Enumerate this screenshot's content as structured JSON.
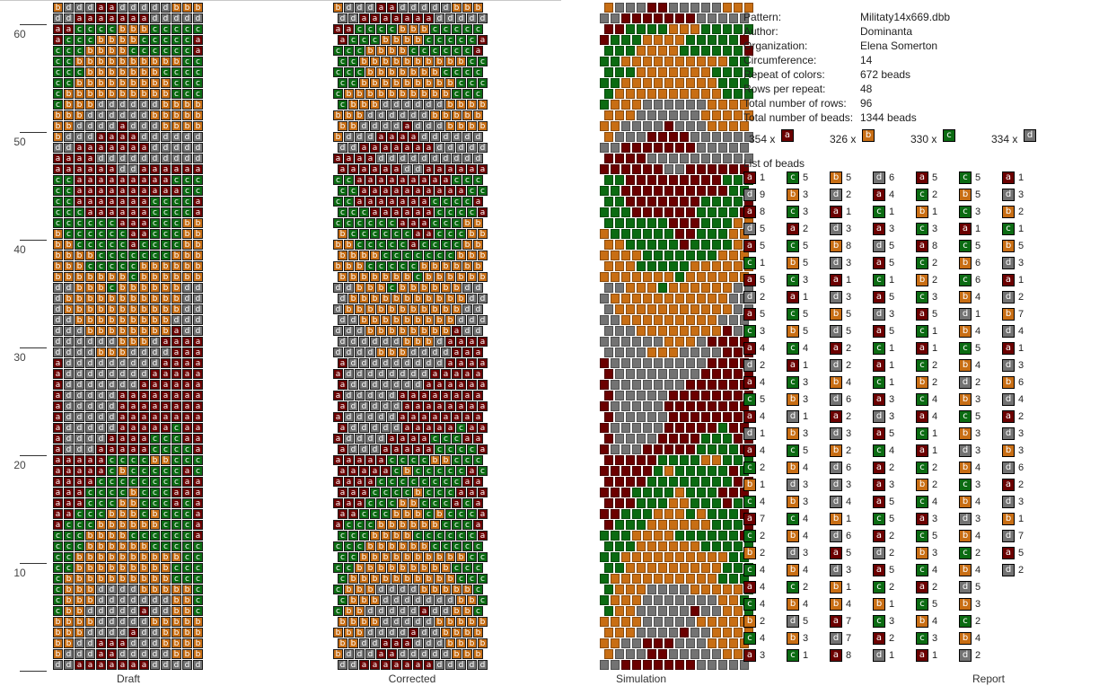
{
  "ruler": {
    "labels": [
      "10",
      "20",
      "30",
      "40",
      "50",
      "60"
    ]
  },
  "panels": {
    "draft_label": "Draft",
    "corrected_label": "Corrected",
    "simulation_label": "Simulation",
    "report_label": "Report"
  },
  "colors": {
    "a": "#6b0000",
    "b": "#c86e14",
    "c": "#0b6b12",
    "d": "#737373",
    "border": "#000000"
  },
  "report": {
    "fields": [
      {
        "label": "Pattern:",
        "value": "Militaty14x669.dbb"
      },
      {
        "label": "Author:",
        "value": "Dominanta"
      },
      {
        "label": "Organization:",
        "value": "Elena Somerton"
      },
      {
        "label": "Circumference:",
        "value": "14"
      },
      {
        "label": "Repeat of colors:",
        "value": "672 beads"
      },
      {
        "label": "Rows per repeat:",
        "value": "48"
      },
      {
        "label": "Total number of rows:",
        "value": "96"
      },
      {
        "label": "Total number of beads:",
        "value": "1344 beads"
      }
    ],
    "tally": [
      {
        "text": "354 x",
        "letter": "a"
      },
      {
        "text": "326 x",
        "letter": "b"
      },
      {
        "text": "330 x",
        "letter": "c"
      },
      {
        "text": "334 x",
        "letter": "d"
      }
    ],
    "list_title": "List of beads",
    "bead_columns": [
      [
        [
          "a",
          "1"
        ],
        [
          "d",
          "9"
        ],
        [
          "a",
          "8"
        ],
        [
          "d",
          "5"
        ],
        [
          "a",
          "5"
        ],
        [
          "c",
          "1"
        ],
        [
          "a",
          "5"
        ],
        [
          "d",
          "2"
        ],
        [
          "a",
          "5"
        ],
        [
          "c",
          "3"
        ],
        [
          "a",
          "4"
        ],
        [
          "d",
          "2"
        ],
        [
          "a",
          "4"
        ],
        [
          "c",
          "5"
        ],
        [
          "a",
          "4"
        ],
        [
          "d",
          "1"
        ],
        [
          "a",
          "4"
        ],
        [
          "c",
          "2"
        ],
        [
          "b",
          "1"
        ],
        [
          "c",
          "4"
        ],
        [
          "a",
          "7"
        ],
        [
          "c",
          "2"
        ],
        [
          "b",
          "2"
        ],
        [
          "c",
          "4"
        ],
        [
          "a",
          "4"
        ],
        [
          "c",
          "4"
        ],
        [
          "b",
          "2"
        ],
        [
          "c",
          "4"
        ],
        [
          "a",
          "3"
        ]
      ],
      [
        [
          "c",
          "5"
        ],
        [
          "b",
          "3"
        ],
        [
          "c",
          "3"
        ],
        [
          "a",
          "2"
        ],
        [
          "c",
          "5"
        ],
        [
          "b",
          "5"
        ],
        [
          "c",
          "3"
        ],
        [
          "a",
          "1"
        ],
        [
          "c",
          "5"
        ],
        [
          "b",
          "5"
        ],
        [
          "c",
          "4"
        ],
        [
          "a",
          "1"
        ],
        [
          "c",
          "3"
        ],
        [
          "b",
          "3"
        ],
        [
          "d",
          "1"
        ],
        [
          "b",
          "3"
        ],
        [
          "c",
          "5"
        ],
        [
          "b",
          "4"
        ],
        [
          "d",
          "3"
        ],
        [
          "b",
          "3"
        ],
        [
          "c",
          "4"
        ],
        [
          "b",
          "4"
        ],
        [
          "d",
          "3"
        ],
        [
          "b",
          "4"
        ],
        [
          "c",
          "2"
        ],
        [
          "b",
          "4"
        ],
        [
          "d",
          "5"
        ],
        [
          "b",
          "3"
        ],
        [
          "c",
          "1"
        ]
      ],
      [
        [
          "b",
          "5"
        ],
        [
          "d",
          "2"
        ],
        [
          "a",
          "1"
        ],
        [
          "d",
          "3"
        ],
        [
          "b",
          "8"
        ],
        [
          "d",
          "3"
        ],
        [
          "a",
          "1"
        ],
        [
          "d",
          "3"
        ],
        [
          "b",
          "5"
        ],
        [
          "d",
          "5"
        ],
        [
          "a",
          "2"
        ],
        [
          "d",
          "2"
        ],
        [
          "b",
          "4"
        ],
        [
          "d",
          "6"
        ],
        [
          "a",
          "2"
        ],
        [
          "d",
          "3"
        ],
        [
          "b",
          "2"
        ],
        [
          "d",
          "6"
        ],
        [
          "d",
          "3"
        ],
        [
          "d",
          "4"
        ],
        [
          "b",
          "1"
        ],
        [
          "d",
          "6"
        ],
        [
          "a",
          "5"
        ],
        [
          "d",
          "3"
        ],
        [
          "b",
          "1"
        ],
        [
          "b",
          "4"
        ],
        [
          "a",
          "7"
        ],
        [
          "d",
          "7"
        ],
        [
          "a",
          "8"
        ]
      ],
      [
        [
          "d",
          "6"
        ],
        [
          "a",
          "4"
        ],
        [
          "c",
          "1"
        ],
        [
          "a",
          "3"
        ],
        [
          "d",
          "5"
        ],
        [
          "a",
          "5"
        ],
        [
          "c",
          "1"
        ],
        [
          "a",
          "5"
        ],
        [
          "d",
          "3"
        ],
        [
          "a",
          "5"
        ],
        [
          "c",
          "1"
        ],
        [
          "a",
          "1"
        ],
        [
          "c",
          "1"
        ],
        [
          "a",
          "3"
        ],
        [
          "d",
          "3"
        ],
        [
          "a",
          "5"
        ],
        [
          "c",
          "4"
        ],
        [
          "a",
          "2"
        ],
        [
          "a",
          "3"
        ],
        [
          "a",
          "5"
        ],
        [
          "c",
          "5"
        ],
        [
          "a",
          "2"
        ],
        [
          "d",
          "2"
        ],
        [
          "a",
          "5"
        ],
        [
          "c",
          "2"
        ],
        [
          "b",
          "1"
        ],
        [
          "c",
          "3"
        ],
        [
          "a",
          "2"
        ],
        [
          "d",
          "1"
        ]
      ],
      [
        [
          "a",
          "5"
        ],
        [
          "c",
          "2"
        ],
        [
          "b",
          "1"
        ],
        [
          "c",
          "3"
        ],
        [
          "a",
          "8"
        ],
        [
          "c",
          "2"
        ],
        [
          "b",
          "2"
        ],
        [
          "c",
          "3"
        ],
        [
          "a",
          "5"
        ],
        [
          "c",
          "1"
        ],
        [
          "a",
          "1"
        ],
        [
          "c",
          "2"
        ],
        [
          "b",
          "2"
        ],
        [
          "c",
          "4"
        ],
        [
          "a",
          "4"
        ],
        [
          "c",
          "1"
        ],
        [
          "a",
          "1"
        ],
        [
          "c",
          "2"
        ],
        [
          "b",
          "2"
        ],
        [
          "c",
          "4"
        ],
        [
          "a",
          "3"
        ],
        [
          "c",
          "5"
        ],
        [
          "b",
          "3"
        ],
        [
          "c",
          "4"
        ],
        [
          "a",
          "2"
        ],
        [
          "c",
          "5"
        ],
        [
          "b",
          "4"
        ],
        [
          "c",
          "3"
        ],
        [
          "a",
          "1"
        ]
      ],
      [
        [
          "c",
          "5"
        ],
        [
          "b",
          "5"
        ],
        [
          "c",
          "3"
        ],
        [
          "a",
          "1"
        ],
        [
          "c",
          "5"
        ],
        [
          "b",
          "6"
        ],
        [
          "c",
          "6"
        ],
        [
          "b",
          "4"
        ],
        [
          "d",
          "1"
        ],
        [
          "b",
          "4"
        ],
        [
          "c",
          "5"
        ],
        [
          "b",
          "4"
        ],
        [
          "d",
          "2"
        ],
        [
          "b",
          "3"
        ],
        [
          "c",
          "5"
        ],
        [
          "b",
          "3"
        ],
        [
          "d",
          "3"
        ],
        [
          "b",
          "4"
        ],
        [
          "c",
          "3"
        ],
        [
          "b",
          "4"
        ],
        [
          "d",
          "3"
        ],
        [
          "b",
          "4"
        ],
        [
          "c",
          "2"
        ],
        [
          "b",
          "4"
        ],
        [
          "d",
          "5"
        ],
        [
          "b",
          "3"
        ],
        [
          "c",
          "2"
        ],
        [
          "b",
          "4"
        ],
        [
          "d",
          "2"
        ]
      ],
      [
        [
          "a",
          "1"
        ],
        [
          "d",
          "3"
        ],
        [
          "b",
          "2"
        ],
        [
          "c",
          "1"
        ],
        [
          "b",
          "5"
        ],
        [
          "d",
          "3"
        ],
        [
          "a",
          "1"
        ],
        [
          "d",
          "2"
        ],
        [
          "b",
          "7"
        ],
        [
          "d",
          "4"
        ],
        [
          "a",
          "1"
        ],
        [
          "d",
          "3"
        ],
        [
          "b",
          "6"
        ],
        [
          "d",
          "4"
        ],
        [
          "a",
          "2"
        ],
        [
          "d",
          "3"
        ],
        [
          "b",
          "3"
        ],
        [
          "d",
          "6"
        ],
        [
          "a",
          "2"
        ],
        [
          "d",
          "3"
        ],
        [
          "b",
          "1"
        ],
        [
          "d",
          "7"
        ],
        [
          "a",
          "5"
        ],
        [
          "d",
          "2"
        ]
      ]
    ]
  },
  "pattern_rows_bottom_to_top": [
    "ddaaaaaaaddddd",
    "bdddaadddddbbb",
    "bbddaaadddbbbb",
    "bbbddddaddbbbb",
    "bbbbdddddbbbbb",
    "cbbdddddaddbbc",
    "cbbbdddddddbbc",
    "cbbbddddbbbbbc",
    "cbbbbbbbbbbccc",
    "ccbbbbbbbbbccc",
    "ccbbbbbbbbbbcc",
    "cccbbbbbbccccc",
    "cccbbbbcccccca",
    "acccbbbbbbccca",
    "aacccbbbcbccca",
    "aaacccbbcccaca",
    "aaaccccbcccaaa",
    "aaaaccccccccaa",
    "aaaaacbcccccac",
    "aaaaaccccbbccc",
    "adddaaaaacccca",
    "addddaaaacccaa",
    "adddddaaaaacaa",
    "adddddaaaaaaaa",
    "adddddaaaaaaaa",
    "adddddaaaaaaaa",
    "adddddddaaaaaa",
    "addddddddaaaaa",
    "adddddddddaaaa",
    "ddddbbbddddaaa",
    "ddddddbbbdaaaa",
    "dddbbbbbbbbadd",
    "ddbbbbbbbbbddd",
    "dbbbbbbbbbbbdd",
    "dbbbbbbbbbbbdd",
    "ddbbbcbbbbbbdd",
    "bbbbbbbcbbbbbb",
    "bbbcccccbbbbbb",
    "bbbbcccccccbbb",
    "bbcccccaccccbb",
    "bccccccaacccbb",
    "ccccccaaacccbb",
    "cccaaaaaacccca",
    "ccaaaaaaacccca",
    "ccaaaaaaaaaacc",
    "ccaaaaaaaaaccc",
    "aaaaaaddaaaaaa",
    "aaaadddddddddd",
    "ddaaaaaaaddddd",
    "bdddaaaadddddd",
    "bbddddadddbbbb",
    "bbbddddddbbbbb",
    "cbbbddddddbbbb",
    "cbbbbbbbbbbccc",
    "ccbbbbbbbbbccc",
    "cccbbbbbbbcccc",
    "ccbbbbbbbbbbcc",
    "cccbbbbcccccca",
    "acccbbbbccccca",
    "aaccccbbbccccc"
  ]
}
